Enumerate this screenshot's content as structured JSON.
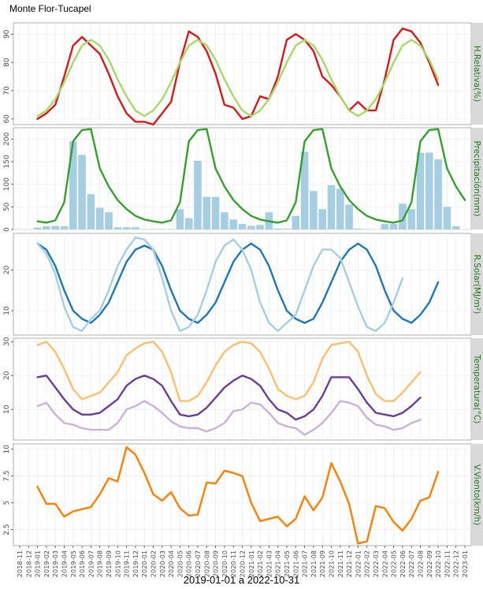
{
  "title": "Monte Flor-Tucapel",
  "xlabel": "2019-01-01 a 2022-10-31",
  "months": [
    "2018-11",
    "2018-12",
    "2019-01",
    "2019-02",
    "2019-03",
    "2019-04",
    "2019-05",
    "2019-06",
    "2019-07",
    "2019-08",
    "2019-09",
    "2019-10",
    "2019-11",
    "2019-12",
    "2020-01",
    "2020-02",
    "2020-03",
    "2020-04",
    "2020-05",
    "2020-06",
    "2020-07",
    "2020-08",
    "2020-09",
    "2020-10",
    "2020-11",
    "2020-12",
    "2021-01",
    "2021-02",
    "2021-03",
    "2021-04",
    "2021-05",
    "2021-06",
    "2021-07",
    "2021-08",
    "2021-09",
    "2021-10",
    "2021-11",
    "2021-12",
    "2022-01",
    "2022-02",
    "2022-03",
    "2022-04",
    "2022-05",
    "2022-06",
    "2022-07",
    "2022-08",
    "2022-09",
    "2022-10",
    "2022-11",
    "2022-12",
    "2023-01"
  ],
  "colors": {
    "strip_bg": "#d9d9d9",
    "strip_text": "#1a7a1a",
    "grid": "#ebebeb",
    "hum_obs": "#d7191c",
    "hum_clim": "#a6d96a",
    "prec_bar": "#a6cee3",
    "prec_line": "#33a02c",
    "rad_obs": "#1f78b4",
    "rad_clim": "#a6cee3",
    "tmax": "#fdbf6f",
    "tmean": "#6a3d9a",
    "tmin": "#cab2d6",
    "wind": "#ff7f00"
  },
  "chart_data": [
    {
      "type": "line",
      "strip": "H.Relativa(%)",
      "ylim": [
        58,
        94
      ],
      "yticks": [
        60,
        70,
        80,
        90
      ],
      "series": [
        {
          "role": "observed",
          "start": 2,
          "values": [
            60,
            62,
            65,
            75,
            86,
            89,
            86,
            83,
            76,
            68,
            62,
            59,
            59,
            58,
            62,
            66,
            80,
            91,
            89,
            84,
            76,
            65,
            64,
            60,
            61,
            68,
            67,
            75,
            88,
            90,
            88,
            84,
            75,
            72,
            68,
            63,
            66,
            63,
            63,
            74,
            88,
            92,
            91,
            87,
            80,
            72
          ]
        },
        {
          "role": "climatology",
          "start": 2,
          "values": [
            61,
            63,
            67,
            73,
            80,
            86,
            88,
            86,
            81,
            74,
            68,
            63,
            61,
            63,
            67,
            73,
            80,
            86,
            88,
            86,
            81,
            74,
            68,
            63,
            61,
            63,
            67,
            73,
            80,
            86,
            88,
            86,
            81,
            74,
            68,
            63,
            61,
            63,
            67,
            73,
            80,
            86,
            88,
            86,
            81,
            74
          ]
        }
      ]
    },
    {
      "type": "bar",
      "strip": "Precipitación(mm)",
      "ylim": [
        0,
        225
      ],
      "yticks": [
        0,
        50,
        100,
        150,
        200
      ],
      "series": [
        {
          "role": "observed",
          "start": 2,
          "values": [
            4,
            7,
            8,
            7,
            195,
            165,
            78,
            48,
            38,
            5,
            5,
            5,
            1,
            1,
            1,
            1,
            45,
            25,
            152,
            72,
            72,
            38,
            22,
            12,
            8,
            10,
            38,
            2,
            2,
            30,
            172,
            85,
            45,
            98,
            90,
            55,
            2,
            1,
            0,
            12,
            12,
            57,
            45,
            170,
            170,
            155,
            50,
            7
          ]
        },
        {
          "role": "climatology",
          "start": 2,
          "values": [
            18,
            15,
            20,
            60,
            195,
            220,
            222,
            135,
            95,
            65,
            45,
            30,
            22,
            18,
            15,
            20,
            60,
            195,
            220,
            222,
            135,
            95,
            65,
            45,
            30,
            22,
            18,
            15,
            20,
            60,
            195,
            220,
            222,
            135,
            95,
            65,
            45,
            30,
            22,
            18,
            15,
            20,
            60,
            195,
            220,
            222,
            135,
            95,
            65
          ]
        }
      ]
    },
    {
      "type": "line",
      "strip": "R.Solar(MJ/m²)",
      "ylim": [
        4,
        29
      ],
      "yticks": [
        10,
        20
      ],
      "series": [
        {
          "role": "observed",
          "start": 2,
          "values": [
            26.5,
            25,
            21,
            15,
            10,
            8,
            7,
            9,
            12,
            17,
            22,
            25,
            26,
            25,
            21,
            15,
            10,
            8,
            7,
            9,
            12,
            17,
            22,
            25,
            26.5,
            25,
            21,
            15,
            10,
            8,
            7,
            8,
            12,
            17,
            22,
            25,
            26.5,
            25,
            21,
            15,
            10,
            8,
            7,
            9,
            12,
            17
          ]
        },
        {
          "role": "climatology",
          "start": 2,
          "values": [
            26.5,
            24,
            19,
            11,
            6,
            5,
            8,
            10,
            15,
            21,
            25,
            28,
            27.5,
            25,
            18,
            10,
            5,
            6,
            9,
            15,
            22,
            26,
            27.5,
            25,
            20,
            12,
            7,
            5,
            7,
            9,
            15,
            21,
            25,
            25,
            23,
            17,
            11,
            6,
            5,
            7,
            12,
            18
          ]
        }
      ]
    },
    {
      "type": "line",
      "strip": "Temperatura(°C)",
      "ylim": [
        1,
        31
      ],
      "yticks": [
        10,
        20,
        30
      ],
      "series": [
        {
          "role": "max",
          "start": 2,
          "values": [
            29,
            30,
            27,
            22,
            16,
            13,
            14,
            15,
            18,
            21,
            26,
            28,
            29.5,
            30,
            27,
            21,
            12.5,
            12.5,
            14,
            18,
            23,
            27,
            29,
            30,
            29.5,
            27,
            22,
            16,
            14,
            13,
            14,
            18,
            25,
            29,
            29.5,
            30,
            27,
            20,
            14.5,
            12.5,
            12.5,
            15,
            18,
            21
          ]
        },
        {
          "role": "mean",
          "start": 2,
          "values": [
            19.5,
            20,
            16.5,
            13,
            10,
            8.5,
            8.5,
            9,
            11,
            13,
            17,
            19,
            20,
            19,
            17,
            12.5,
            8.5,
            8,
            8.5,
            10.5,
            13.5,
            16.5,
            18.5,
            20,
            19,
            17,
            13,
            10,
            9,
            7,
            8,
            10,
            14,
            19.5,
            19.5,
            19.5,
            16,
            12,
            9,
            8.5,
            8,
            9,
            11,
            13.5
          ]
        },
        {
          "role": "min",
          "start": 2,
          "values": [
            11,
            12,
            8.5,
            6,
            5.5,
            4.5,
            4,
            4,
            4,
            6,
            10,
            11,
            12.5,
            11,
            9,
            6.5,
            5,
            4.5,
            4.5,
            3.5,
            4.5,
            6,
            9.5,
            10,
            12,
            11.5,
            9,
            6,
            5,
            4.5,
            2.5,
            4,
            6,
            9,
            12.5,
            12,
            11,
            7.5,
            5.5,
            5,
            4,
            4.5,
            6,
            7
          ]
        }
      ]
    },
    {
      "type": "line",
      "strip": "V.Viento(km/h)",
      "ylim": [
        1.0,
        10.5
      ],
      "yticks": [
        2.5,
        5.0,
        7.5,
        10.0
      ],
      "series": [
        {
          "role": "observed",
          "start": 2,
          "values": [
            6.5,
            4.9,
            4.9,
            3.7,
            4.2,
            4.4,
            4.6,
            5.8,
            7.3,
            7.0,
            10.2,
            9.5,
            7.8,
            5.8,
            5.2,
            6.0,
            4.5,
            3.8,
            3.9,
            6.9,
            6.8,
            8.0,
            7.8,
            7.5,
            5.0,
            3.3,
            3.5,
            3.7,
            2.8,
            3.5,
            5.6,
            4.3,
            5.5,
            8.7,
            7.0,
            4.9,
            1.2,
            1.4,
            4.7,
            4.5,
            3.2,
            2.4,
            3.5,
            5.2,
            5.5,
            7.9
          ]
        }
      ]
    }
  ]
}
